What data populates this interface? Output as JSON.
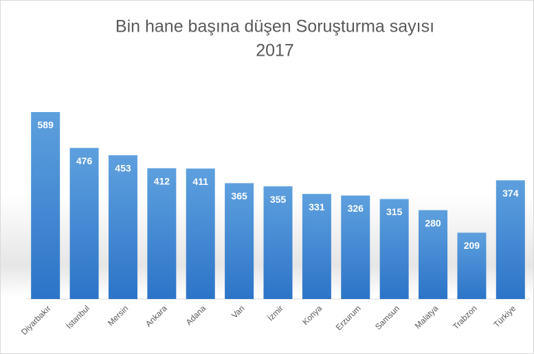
{
  "chart_data": {
    "type": "bar",
    "title": "Bin hane başına düşen Soruşturma sayısı",
    "subtitle": "2017",
    "categories": [
      "Diyarbakır",
      "İstanbul",
      "Mersin",
      "Ankara",
      "Adana",
      "Van",
      "İzmir",
      "Konya",
      "Erzurum",
      "Samsun",
      "Malatya",
      "Trabzon",
      "Türkiye"
    ],
    "values": [
      589,
      476,
      453,
      412,
      411,
      365,
      355,
      331,
      326,
      315,
      280,
      209,
      374
    ],
    "color": "#3f86d4"
  }
}
